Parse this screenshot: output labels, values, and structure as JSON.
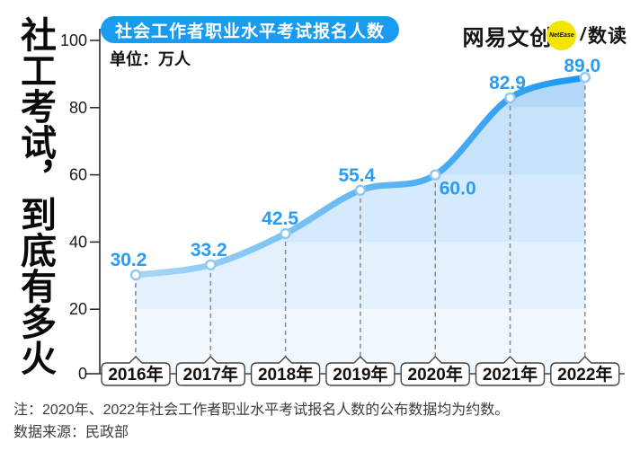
{
  "headline": "社工考试，到底有多火",
  "header": {
    "title_badge": "社会工作者职业水平考试报名人数",
    "unit_label": "单位：万人"
  },
  "logo": {
    "brand": "网易文创",
    "badge_text": "NetEase",
    "separator": "/",
    "sub_brand": "数读"
  },
  "chart_data": {
    "type": "area",
    "title": "社会工作者职业水平考试报名人数",
    "unit": "万人",
    "categories": [
      "2016年",
      "2017年",
      "2018年",
      "2019年",
      "2020年",
      "2021年",
      "2022年"
    ],
    "values": [
      30.2,
      33.2,
      42.5,
      55.4,
      60.0,
      82.9,
      89.0
    ],
    "value_labels": [
      "30.2",
      "33.2",
      "42.5",
      "55.4",
      "60.0",
      "82.9",
      "89.0"
    ],
    "y_ticks": [
      0,
      20,
      40,
      60,
      80,
      100
    ],
    "ylim": [
      0,
      100
    ],
    "grid": false,
    "legend": "none",
    "colors": {
      "badge_blue": "#189bf1",
      "line_gradient_start": "#a8d7f4",
      "line_gradient_mid": "#6cbbf3",
      "line_gradient_end": "#1b96f0",
      "value_label_blue": "#2b9cf2",
      "marker_stroke": "#93c9ef",
      "band_colors_top_to_bottom": [
        "#b4d9f8",
        "#c7e3fa",
        "#d5eafc",
        "#e3f1fd",
        "#f0f8fe"
      ],
      "axis_color": "#222222",
      "guide_dash_color": "#909090",
      "logo_yellow": "#f2e600"
    }
  },
  "notes": {
    "note": "注：2020年、2022年社会工作者职业水平考试报名人数的公布数据均为约数。",
    "source": "数据来源：民政部"
  }
}
